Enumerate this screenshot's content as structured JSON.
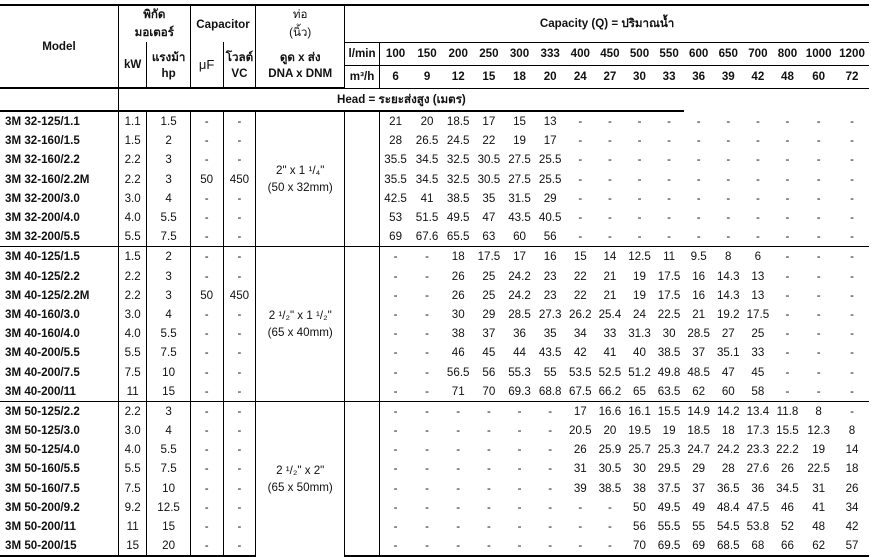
{
  "header": {
    "model": "Model",
    "motor": "พิกัด\nมอเตอร์",
    "motor_line1": "พิกัด",
    "motor_line2": "มอเตอร์",
    "kw": "kW",
    "hp_line1": "แรงม้า",
    "hp_line2": "hp",
    "capacitor": "Capacitor",
    "uf": "μF",
    "vc_line1": "โวลต์",
    "vc_line2": "VC",
    "pipe_line1": "ท่อ",
    "pipe_line2": "(นิ้ว)",
    "dna_line1": "ดูด x ส่ง",
    "dna_line2": "DNA x DNM",
    "capacity_title": "Capacity (Q) = ปริมาณน้ำ",
    "lmin": "l/min",
    "m3h": "m³/h",
    "head_title": "Head = ระยะส่งสูง (เมตร)",
    "lmin_values": [
      "100",
      "150",
      "200",
      "250",
      "300",
      "333",
      "400",
      "450",
      "500",
      "550",
      "600",
      "650",
      "700",
      "800",
      "1000",
      "1200"
    ],
    "m3h_values": [
      "6",
      "9",
      "12",
      "15",
      "18",
      "20",
      "24",
      "27",
      "30",
      "33",
      "36",
      "39",
      "42",
      "48",
      "60",
      "72"
    ]
  },
  "groups": [
    {
      "pipe_line1": "2\" x 1 ¹/₄\"",
      "pipe_line2": "(50 x 32mm)",
      "rows": [
        {
          "model": "3M 32-125/1.1",
          "kw": "1.1",
          "hp": "1.5",
          "uf": "-",
          "vc": "-",
          "heads": [
            "21",
            "20",
            "18.5",
            "17",
            "15",
            "13",
            "-",
            "-",
            "-",
            "-",
            "-",
            "-",
            "-",
            "-",
            "-",
            "-"
          ]
        },
        {
          "model": "3M 32-160/1.5",
          "kw": "1.5",
          "hp": "2",
          "uf": "-",
          "vc": "-",
          "heads": [
            "28",
            "26.5",
            "24.5",
            "22",
            "19",
            "17",
            "-",
            "-",
            "-",
            "-",
            "-",
            "-",
            "-",
            "-",
            "-",
            "-"
          ]
        },
        {
          "model": "3M 32-160/2.2",
          "kw": "2.2",
          "hp": "3",
          "uf": "-",
          "vc": "-",
          "heads": [
            "35.5",
            "34.5",
            "32.5",
            "30.5",
            "27.5",
            "25.5",
            "-",
            "-",
            "-",
            "-",
            "-",
            "-",
            "-",
            "-",
            "-",
            "-"
          ]
        },
        {
          "model": "3M 32-160/2.2M",
          "kw": "2.2",
          "hp": "3",
          "uf": "50",
          "vc": "450",
          "heads": [
            "35.5",
            "34.5",
            "32.5",
            "30.5",
            "27.5",
            "25.5",
            "-",
            "-",
            "-",
            "-",
            "-",
            "-",
            "-",
            "-",
            "-",
            "-"
          ]
        },
        {
          "model": "3M 32-200/3.0",
          "kw": "3.0",
          "hp": "4",
          "uf": "-",
          "vc": "-",
          "heads": [
            "42.5",
            "41",
            "38.5",
            "35",
            "31.5",
            "29",
            "-",
            "-",
            "-",
            "-",
            "-",
            "-",
            "-",
            "-",
            "-",
            "-"
          ]
        },
        {
          "model": "3M 32-200/4.0",
          "kw": "4.0",
          "hp": "5.5",
          "uf": "-",
          "vc": "-",
          "heads": [
            "53",
            "51.5",
            "49.5",
            "47",
            "43.5",
            "40.5",
            "-",
            "-",
            "-",
            "-",
            "-",
            "-",
            "-",
            "-",
            "-",
            "-"
          ]
        },
        {
          "model": "3M 32-200/5.5",
          "kw": "5.5",
          "hp": "7.5",
          "uf": "-",
          "vc": "-",
          "heads": [
            "69",
            "67.6",
            "65.5",
            "63",
            "60",
            "56",
            "-",
            "-",
            "-",
            "-",
            "-",
            "-",
            "-",
            "-",
            "-",
            "-"
          ]
        }
      ]
    },
    {
      "pipe_line1": "2 ¹/₂\" x 1 ¹/₂\"",
      "pipe_line2": "(65 x 40mm)",
      "rows": [
        {
          "model": "3M 40-125/1.5",
          "kw": "1.5",
          "hp": "2",
          "uf": "-",
          "vc": "-",
          "heads": [
            "-",
            "-",
            "18",
            "17.5",
            "17",
            "16",
            "15",
            "14",
            "12.5",
            "11",
            "9.5",
            "8",
            "6",
            "-",
            "-",
            "-"
          ]
        },
        {
          "model": "3M 40-125/2.2",
          "kw": "2.2",
          "hp": "3",
          "uf": "-",
          "vc": "-",
          "heads": [
            "-",
            "-",
            "26",
            "25",
            "24.2",
            "23",
            "22",
            "21",
            "19",
            "17.5",
            "16",
            "14.3",
            "13",
            "-",
            "-",
            "-"
          ]
        },
        {
          "model": "3M 40-125/2.2M",
          "kw": "2.2",
          "hp": "3",
          "uf": "50",
          "vc": "450",
          "heads": [
            "-",
            "-",
            "26",
            "25",
            "24.2",
            "23",
            "22",
            "21",
            "19",
            "17.5",
            "16",
            "14.3",
            "13",
            "-",
            "-",
            "-"
          ]
        },
        {
          "model": "3M 40-160/3.0",
          "kw": "3.0",
          "hp": "4",
          "uf": "-",
          "vc": "-",
          "heads": [
            "-",
            "-",
            "30",
            "29",
            "28.5",
            "27.3",
            "26.2",
            "25.4",
            "24",
            "22.5",
            "21",
            "19.2",
            "17.5",
            "-",
            "-",
            "-"
          ]
        },
        {
          "model": "3M 40-160/4.0",
          "kw": "4.0",
          "hp": "5.5",
          "uf": "-",
          "vc": "-",
          "heads": [
            "-",
            "-",
            "38",
            "37",
            "36",
            "35",
            "34",
            "33",
            "31.3",
            "30",
            "28.5",
            "27",
            "25",
            "-",
            "-",
            "-"
          ]
        },
        {
          "model": "3M 40-200/5.5",
          "kw": "5.5",
          "hp": "7.5",
          "uf": "-",
          "vc": "-",
          "heads": [
            "-",
            "-",
            "46",
            "45",
            "44",
            "43.5",
            "42",
            "41",
            "40",
            "38.5",
            "37",
            "35.1",
            "33",
            "-",
            "-",
            "-"
          ]
        },
        {
          "model": "3M 40-200/7.5",
          "kw": "7.5",
          "hp": "10",
          "uf": "-",
          "vc": "-",
          "heads": [
            "-",
            "-",
            "56.5",
            "56",
            "55.3",
            "55",
            "53.5",
            "52.5",
            "51.2",
            "49.8",
            "48.5",
            "47",
            "45",
            "-",
            "-",
            "-"
          ]
        },
        {
          "model": "3M 40-200/11",
          "kw": "11",
          "hp": "15",
          "uf": "-",
          "vc": "-",
          "heads": [
            "-",
            "-",
            "71",
            "70",
            "69.3",
            "68.8",
            "67.5",
            "66.2",
            "65",
            "63.5",
            "62",
            "60",
            "58",
            "-",
            "-",
            "-"
          ]
        }
      ]
    },
    {
      "pipe_line1": "2 ¹/₂\" x 2\"",
      "pipe_line2": "(65 x 50mm)",
      "rows": [
        {
          "model": "3M 50-125/2.2",
          "kw": "2.2",
          "hp": "3",
          "uf": "-",
          "vc": "-",
          "heads": [
            "-",
            "-",
            "-",
            "-",
            "-",
            "-",
            "17",
            "16.6",
            "16.1",
            "15.5",
            "14.9",
            "14.2",
            "13.4",
            "11.8",
            "8",
            "-"
          ]
        },
        {
          "model": "3M 50-125/3.0",
          "kw": "3.0",
          "hp": "4",
          "uf": "-",
          "vc": "-",
          "heads": [
            "-",
            "-",
            "-",
            "-",
            "-",
            "-",
            "20.5",
            "20",
            "19.5",
            "19",
            "18.5",
            "18",
            "17.3",
            "15.5",
            "12.3",
            "8"
          ]
        },
        {
          "model": "3M 50-125/4.0",
          "kw": "4.0",
          "hp": "5.5",
          "uf": "-",
          "vc": "-",
          "heads": [
            "-",
            "-",
            "-",
            "-",
            "-",
            "-",
            "26",
            "25.9",
            "25.7",
            "25.3",
            "24.7",
            "24.2",
            "23.3",
            "22.2",
            "19",
            "14"
          ]
        },
        {
          "model": "3M 50-160/5.5",
          "kw": "5.5",
          "hp": "7.5",
          "uf": "-",
          "vc": "-",
          "heads": [
            "-",
            "-",
            "-",
            "-",
            "-",
            "-",
            "31",
            "30.5",
            "30",
            "29.5",
            "29",
            "28",
            "27.6",
            "26",
            "22.5",
            "18"
          ]
        },
        {
          "model": "3M 50-160/7.5",
          "kw": "7.5",
          "hp": "10",
          "uf": "-",
          "vc": "-",
          "heads": [
            "-",
            "-",
            "-",
            "-",
            "-",
            "-",
            "39",
            "38.5",
            "38",
            "37.5",
            "37",
            "36.5",
            "36",
            "34.5",
            "31",
            "26"
          ]
        },
        {
          "model": "3M 50-200/9.2",
          "kw": "9.2",
          "hp": "12.5",
          "uf": "-",
          "vc": "-",
          "heads": [
            "-",
            "-",
            "-",
            "-",
            "-",
            "-",
            "-",
            "-",
            "50",
            "49.5",
            "49",
            "48.4",
            "47.5",
            "46",
            "41",
            "34"
          ]
        },
        {
          "model": "3M 50-200/11",
          "kw": "11",
          "hp": "15",
          "uf": "-",
          "vc": "-",
          "heads": [
            "-",
            "-",
            "-",
            "-",
            "-",
            "-",
            "-",
            "-",
            "56",
            "55.5",
            "55",
            "54.5",
            "53.8",
            "52",
            "48",
            "42"
          ]
        },
        {
          "model": "3M 50-200/15",
          "kw": "15",
          "hp": "20",
          "uf": "-",
          "vc": "-",
          "heads": [
            "-",
            "-",
            "-",
            "-",
            "-",
            "-",
            "-",
            "-",
            "70",
            "69.5",
            "69",
            "68.5",
            "68",
            "66",
            "62",
            "57"
          ]
        }
      ]
    }
  ]
}
